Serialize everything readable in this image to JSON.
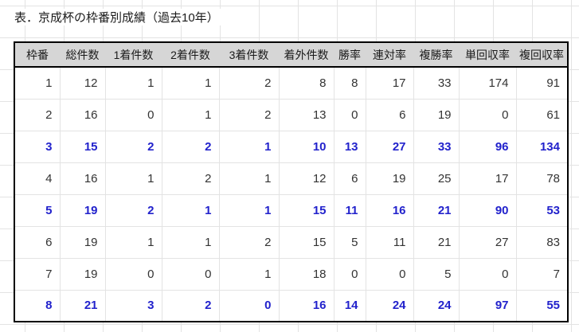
{
  "chart_data": {
    "type": "table",
    "title": "表．京成杯の枠番別成績（過去10年）",
    "columns": [
      "枠番",
      "総件数",
      "1着件数",
      "2着件数",
      "3着件数",
      "着外件数",
      "勝率",
      "連対率",
      "複勝率",
      "単回収率",
      "複回収率"
    ],
    "rows": [
      {
        "highlight": false,
        "cells": [
          "1",
          "12",
          "1",
          "1",
          "2",
          "8",
          "8",
          "17",
          "33",
          "174",
          "91"
        ]
      },
      {
        "highlight": false,
        "cells": [
          "2",
          "16",
          "0",
          "1",
          "2",
          "13",
          "0",
          "6",
          "19",
          "0",
          "61"
        ]
      },
      {
        "highlight": true,
        "cells": [
          "3",
          "15",
          "2",
          "2",
          "1",
          "10",
          "13",
          "27",
          "33",
          "96",
          "134"
        ]
      },
      {
        "highlight": false,
        "cells": [
          "4",
          "16",
          "1",
          "2",
          "1",
          "12",
          "6",
          "19",
          "25",
          "17",
          "78"
        ]
      },
      {
        "highlight": true,
        "cells": [
          "5",
          "19",
          "2",
          "1",
          "1",
          "15",
          "11",
          "16",
          "21",
          "90",
          "53"
        ]
      },
      {
        "highlight": false,
        "cells": [
          "6",
          "19",
          "1",
          "1",
          "2",
          "15",
          "5",
          "11",
          "21",
          "27",
          "83"
        ]
      },
      {
        "highlight": false,
        "cells": [
          "7",
          "19",
          "0",
          "0",
          "1",
          "18",
          "0",
          "0",
          "5",
          "0",
          "7"
        ]
      },
      {
        "highlight": true,
        "cells": [
          "8",
          "21",
          "3",
          "2",
          "0",
          "16",
          "14",
          "24",
          "24",
          "97",
          "55"
        ]
      }
    ]
  },
  "colors": {
    "highlight_text": "#2222cc",
    "normal_text": "#333333",
    "header_bg": "#d6d6d6",
    "grid_line": "#e3e3e3",
    "table_border": "#000000"
  }
}
